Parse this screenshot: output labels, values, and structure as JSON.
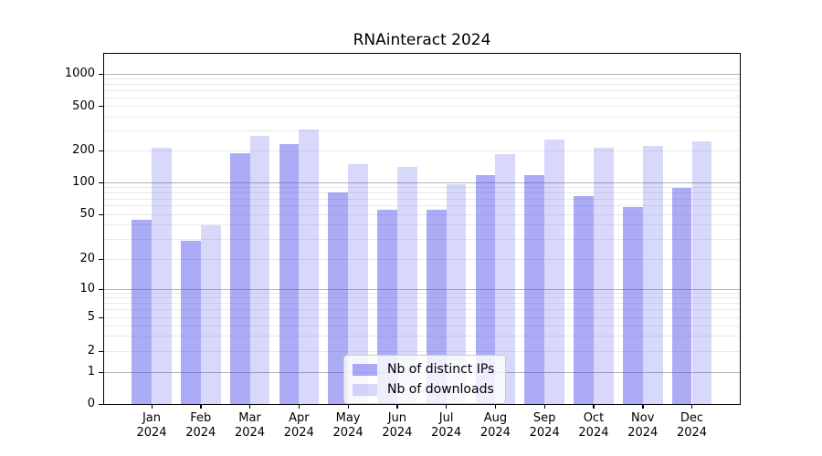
{
  "chart_data": {
    "type": "bar",
    "title": "RNAinteract 2024",
    "xlabel": "",
    "ylabel": "",
    "months": [
      "Jan",
      "Feb",
      "Mar",
      "Apr",
      "May",
      "Jun",
      "Jul",
      "Aug",
      "Sep",
      "Oct",
      "Nov",
      "Dec"
    ],
    "year": "2024",
    "categories": [
      "Jan 2024",
      "Feb 2024",
      "Mar 2024",
      "Apr 2024",
      "May 2024",
      "Jun 2024",
      "Jul 2024",
      "Aug 2024",
      "Sep 2024",
      "Oct 2024",
      "Nov 2024",
      "Dec 2024"
    ],
    "series": [
      {
        "name": "Nb of distinct IPs",
        "color": "#4646EB",
        "alpha": 0.45,
        "values": [
          45,
          29,
          190,
          230,
          80,
          55,
          55,
          117,
          117,
          74,
          59,
          88
        ]
      },
      {
        "name": "Nb of downloads",
        "color": "#4646EB",
        "alpha": 0.21,
        "values": [
          212,
          40,
          270,
          310,
          150,
          140,
          97,
          185,
          253,
          210,
          220,
          242
        ]
      }
    ],
    "yscale": "symlog",
    "yticks": [
      0,
      1,
      2,
      5,
      10,
      20,
      50,
      100,
      200,
      500,
      1000
    ],
    "major_gridlines": [
      1,
      10,
      100,
      1000
    ],
    "ylim": [
      0,
      1500
    ],
    "grid": true,
    "legend_position": "inside-bottom-center"
  },
  "colors": {
    "major_grid": "#b3b3b3",
    "minor_grid": "#eaeaea",
    "spine": "#000000",
    "background": "#ffffff"
  }
}
